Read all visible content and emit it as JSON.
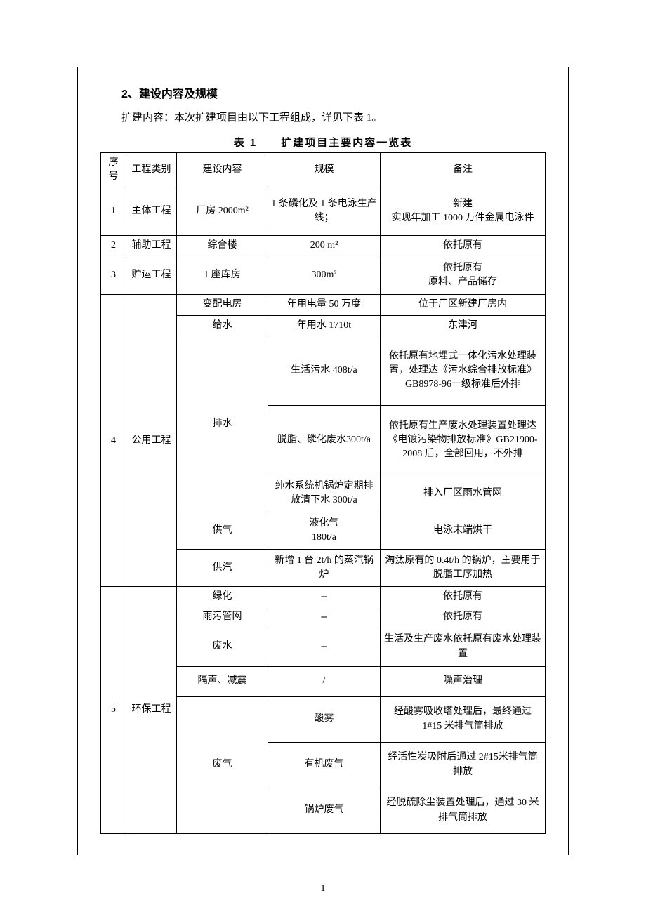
{
  "section_title": "2、建设内容及规模",
  "intro_text": "扩建内容：本次扩建项目由以下工程组成，详见下表 1。",
  "table_caption": "表 1　　扩建项目主要内容一览表",
  "page_number": "1",
  "headers": {
    "idx": "序号",
    "category": "工程类别",
    "content": "建设内容",
    "scale": "规模",
    "note": "备注"
  },
  "rows": {
    "r1": {
      "idx": "1",
      "category": "主体工程",
      "content": "厂房 2000m²",
      "scale": "1 条磷化及 1 条电泳生产线；",
      "note": "新建\n实现年加工 1000 万件金属电泳件"
    },
    "r2": {
      "idx": "2",
      "category": "辅助工程",
      "content": "综合楼",
      "scale": "200 m²",
      "note": "依托原有"
    },
    "r3": {
      "idx": "3",
      "category": "贮运工程",
      "content": "1 座库房",
      "scale": "300m²",
      "note": "依托原有\n原料、产品储存"
    },
    "r4": {
      "idx": "4",
      "category": "公用工程"
    },
    "r4a": {
      "content": "变配电房",
      "scale": "年用电量 50 万度",
      "note": "位于厂区新建厂房内"
    },
    "r4b": {
      "content": "给水",
      "scale": "年用水 1710t",
      "note": "东津河"
    },
    "r4c": {
      "content": "排水"
    },
    "r4c1": {
      "scale": "生活污水 408t/a",
      "note": "依托原有地埋式一体化污水处理装置，处理达《污水综合排放标准》GB8978-96一级标准后外排"
    },
    "r4c2": {
      "scale": "脱脂、磷化废水300t/a",
      "note": "依托原有生产废水处理装置处理达《电镀污染物排放标准》GB21900-2008 后，全部回用，不外排"
    },
    "r4c3": {
      "scale": "纯水系统机锅炉定期排放清下水 300t/a",
      "note": "排入厂区雨水管网"
    },
    "r4d": {
      "content": "供气",
      "scale": "液化气\n180t/a",
      "note": "电泳末端烘干"
    },
    "r4e": {
      "content": "供汽",
      "scale": "新增 1 台 2t/h 的蒸汽锅炉",
      "note": "淘汰原有的 0.4t/h 的锅炉，主要用于脱脂工序加热"
    },
    "r5": {
      "idx": "5",
      "category": "环保工程"
    },
    "r5a": {
      "content": "绿化",
      "scale": "--",
      "note": "依托原有"
    },
    "r5b": {
      "content": "雨污管网",
      "scale": "--",
      "note": "依托原有"
    },
    "r5c": {
      "content": "废水",
      "scale": "--",
      "note": "生活及生产废水依托原有废水处理装置"
    },
    "r5d": {
      "content": "隔声、减震",
      "scale": "/",
      "note": "噪声治理"
    },
    "r5e": {
      "content": "废气"
    },
    "r5e1": {
      "scale": "酸雾",
      "note": "经酸雾吸收塔处理后，最终通过 1#15 米排气筒排放"
    },
    "r5e2": {
      "scale": "有机废气",
      "note": "经活性炭吸附后通过 2#15米排气筒排放"
    },
    "r5e3": {
      "scale": "锅炉废气",
      "note": "经脱硫除尘装置处理后，通过 30 米排气筒排放"
    }
  }
}
